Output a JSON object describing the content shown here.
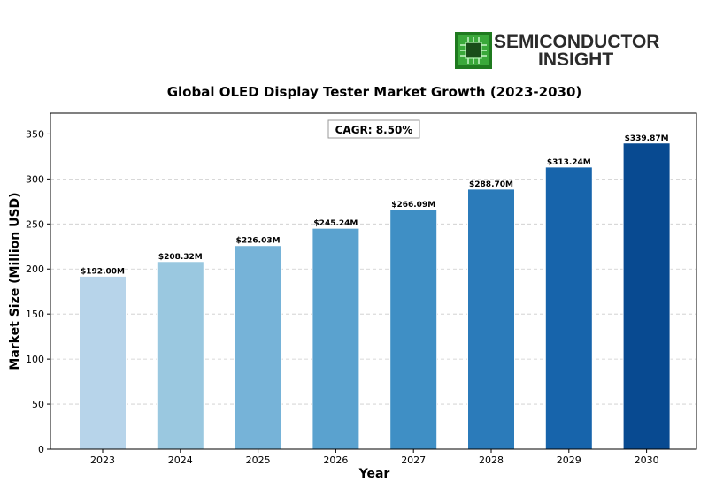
{
  "logo": {
    "line1": "SEMICONDUCTOR",
    "line2": "INSIGHT",
    "icon": "chip-icon",
    "accent_color": "#3aa83a"
  },
  "annotation": {
    "text": "CAGR: 8.50%"
  },
  "chart_data": {
    "type": "bar",
    "title": "Global OLED Display Tester Market Growth (2023-2030)",
    "xlabel": "Year",
    "ylabel": "Market Size (Million USD)",
    "categories": [
      "2023",
      "2024",
      "2025",
      "2026",
      "2027",
      "2028",
      "2029",
      "2030"
    ],
    "values": [
      192.0,
      208.32,
      226.03,
      245.24,
      266.09,
      288.7,
      313.24,
      339.87
    ],
    "data_labels": [
      "$192.00M",
      "$208.32M",
      "$226.03M",
      "$245.24M",
      "$266.09M",
      "$288.70M",
      "$313.24M",
      "$339.87M"
    ],
    "colors": [
      "#b7d4ea",
      "#9ac8e0",
      "#76b3d8",
      "#5aa2cf",
      "#3f8fc5",
      "#2b7bba",
      "#1764ab",
      "#084a91"
    ],
    "ylim": [
      0,
      373
    ],
    "yticks": [
      0,
      50,
      100,
      150,
      200,
      250,
      300,
      350
    ],
    "grid": true
  }
}
